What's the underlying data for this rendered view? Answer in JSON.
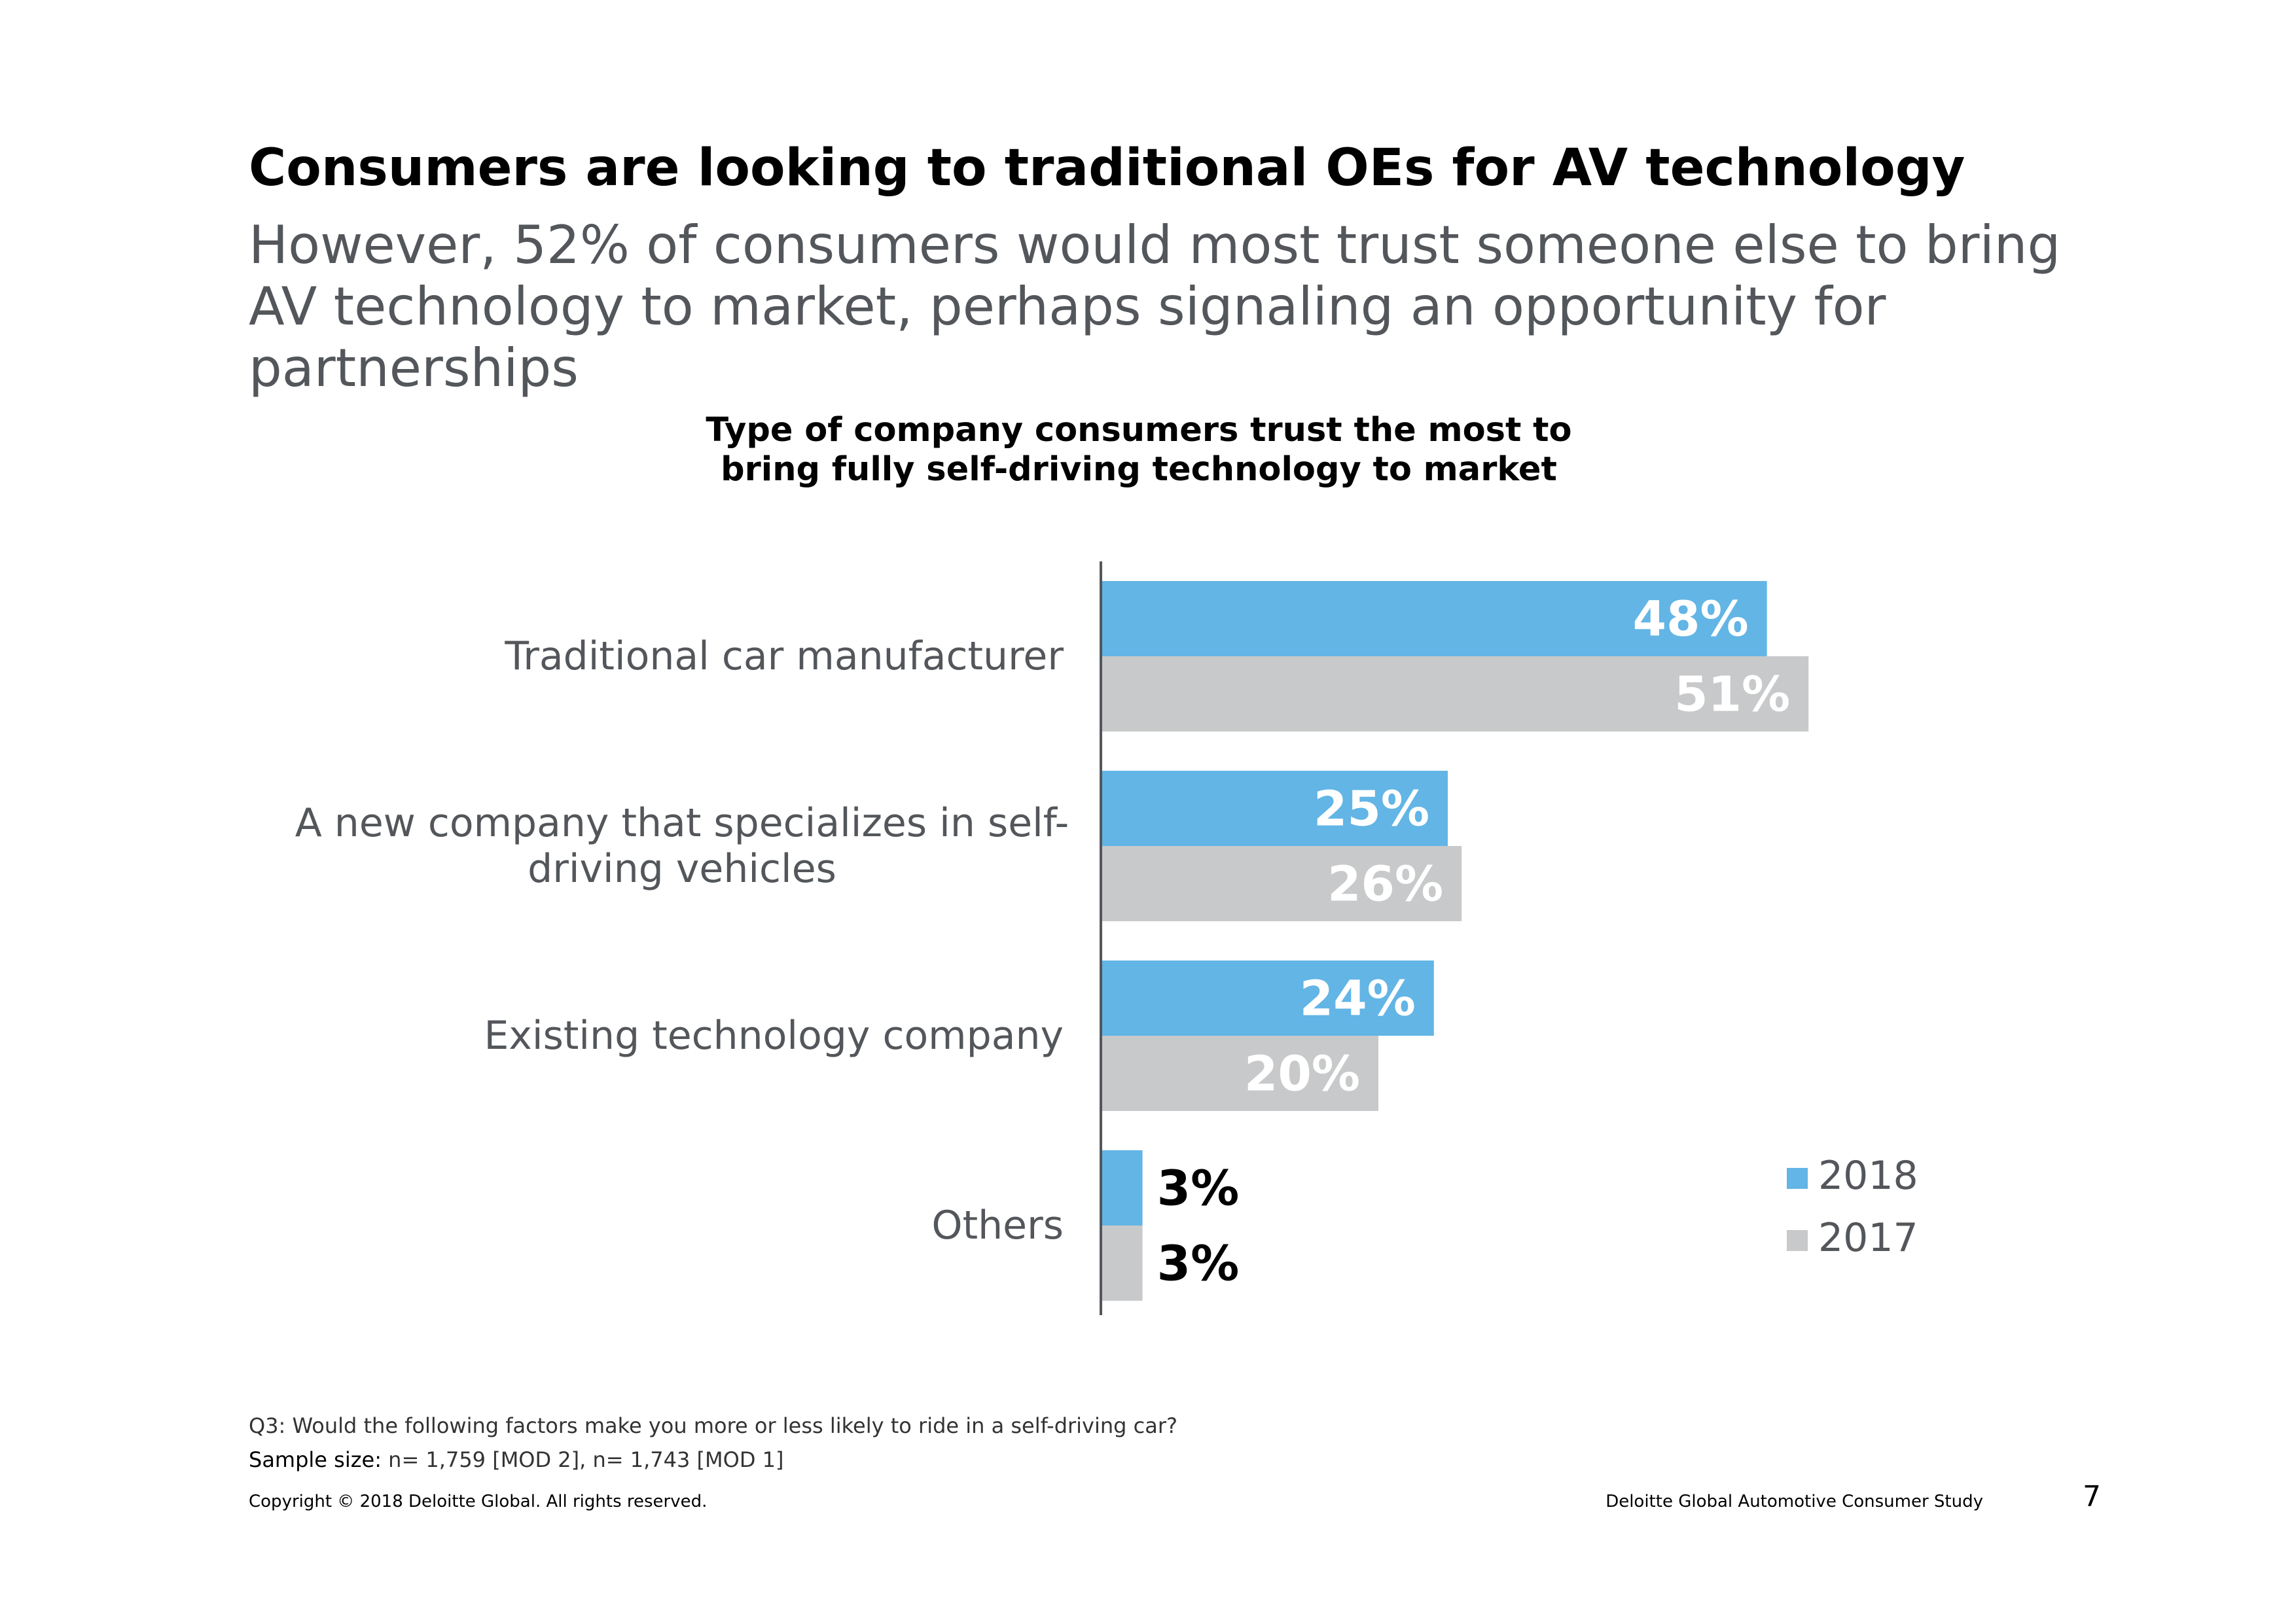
{
  "slide": {
    "title": "Consumers are looking to traditional OEs for AV technology",
    "subtitle": "However, 52% of consumers would most trust someone else to bring AV technology to market, perhaps signaling an opportunity for partnerships"
  },
  "chart_data": {
    "type": "bar",
    "orientation": "horizontal",
    "title_lines": [
      "Type of company consumers trust the most to",
      "bring fully self-driving technology to market"
    ],
    "categories": [
      [
        "Traditional car manufacturer"
      ],
      [
        "A new company that specializes in self-",
        "driving vehicles"
      ],
      [
        "Existing technology company"
      ],
      [
        "Others"
      ]
    ],
    "series": [
      {
        "name": "2018",
        "color": "#62b5e5",
        "values": [
          48,
          25,
          24,
          3
        ],
        "labels": [
          "48%",
          "25%",
          "24%",
          "3%"
        ]
      },
      {
        "name": "2017",
        "color": "#c8c9ca",
        "values": [
          51,
          26,
          20,
          3
        ],
        "labels": [
          "51%",
          "26%",
          "20%",
          "3%"
        ]
      }
    ],
    "xlim": [
      0,
      100
    ],
    "legend_position": "bottom-right",
    "grid": false
  },
  "footer": {
    "question": "Q3: Would the following factors make you more or less likely to ride in a self-driving car?",
    "sample_label": "Sample size:",
    "sample_value": " n= 1,759 [MOD 2], n= 1,743 [MOD 1]",
    "copyright": "Copyright © 2018 Deloitte Global. All rights reserved.",
    "study": "Deloitte Global Automotive Consumer Study",
    "page_number": "7"
  }
}
